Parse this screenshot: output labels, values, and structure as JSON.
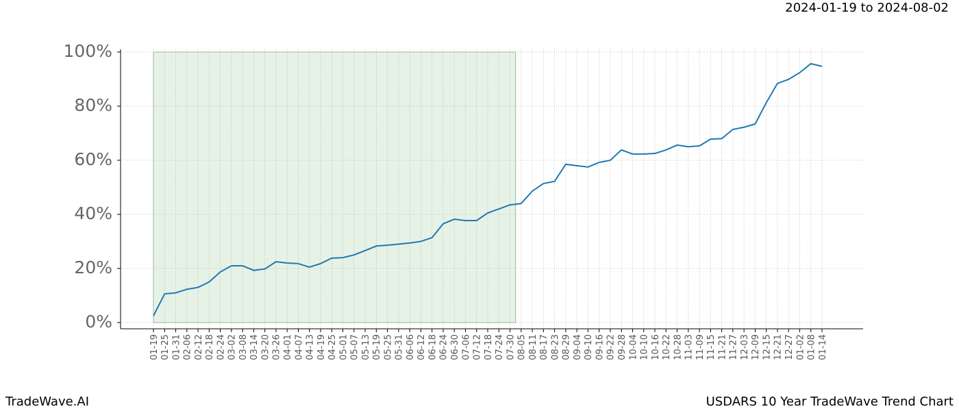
{
  "chart_data": {
    "type": "line",
    "date_range": "2024-01-19 to 2024-08-02",
    "brand": "TradeWave.AI",
    "chart_title": "USDARS 10 Year TradeWave Trend Chart",
    "categories": [
      "01-19",
      "01-25",
      "01-31",
      "02-06",
      "02-12",
      "02-18",
      "02-24",
      "03-02",
      "03-08",
      "03-14",
      "03-20",
      "03-26",
      "04-01",
      "04-07",
      "04-13",
      "04-19",
      "04-25",
      "05-01",
      "05-07",
      "05-13",
      "05-19",
      "05-25",
      "05-31",
      "06-06",
      "06-12",
      "06-18",
      "06-24",
      "06-30",
      "07-06",
      "07-12",
      "07-18",
      "07-24",
      "07-30",
      "08-05",
      "08-11",
      "08-17",
      "08-23",
      "08-29",
      "09-04",
      "09-10",
      "09-16",
      "09-22",
      "09-28",
      "10-04",
      "10-10",
      "10-16",
      "10-22",
      "10-28",
      "11-03",
      "11-09",
      "11-15",
      "11-21",
      "11-27",
      "12-03",
      "12-09",
      "12-15",
      "12-21",
      "12-27",
      "01-02",
      "01-08",
      "01-14"
    ],
    "series": [
      {
        "color": "#1f77b4",
        "values": [
          2.5,
          10.6,
          11,
          12.3,
          13,
          15,
          18.7,
          21,
          21,
          19.3,
          19.8,
          22.5,
          22,
          21.8,
          20.5,
          21.8,
          23.8,
          24,
          25,
          26.6,
          28.3,
          28.6,
          29,
          29.4,
          30,
          31.4,
          36.5,
          38.2,
          37.7,
          37.7,
          40.5,
          42,
          43.5,
          44,
          48.6,
          51.4,
          52.2,
          58.5,
          58,
          57.5,
          59.2,
          60,
          63.8,
          62.3,
          62.3,
          62.5,
          63.8,
          65.6,
          65,
          65.3,
          67.8,
          68,
          71.4,
          72.2,
          73.4,
          81.3,
          88.4,
          89.9,
          92.4,
          95.7,
          94.7
        ]
      }
    ],
    "highlight": {
      "start": 0,
      "end": 32.5,
      "color": "#c8e2c8"
    },
    "ylim": [
      -2.3,
      101
    ],
    "yticks": [
      {
        "value": 0,
        "label": "0%"
      },
      {
        "value": 20,
        "label": "20%"
      },
      {
        "value": 40,
        "label": "40%"
      },
      {
        "value": 60,
        "label": "60%"
      },
      {
        "value": 80,
        "label": "80%"
      },
      {
        "value": 100,
        "label": "100%"
      }
    ],
    "grid": true
  }
}
